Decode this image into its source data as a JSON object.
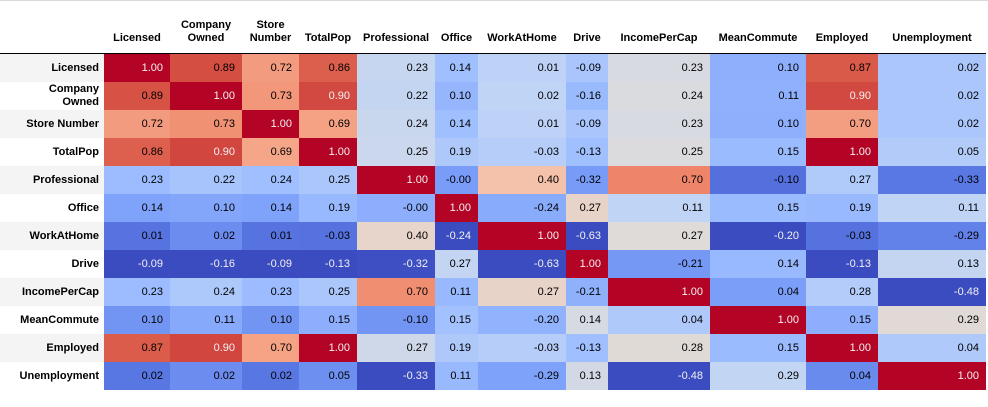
{
  "chart_data": {
    "type": "heatmap",
    "title": "",
    "columns": [
      "Licensed",
      "Company Owned",
      "Store Number",
      "TotalPop",
      "Professional",
      "Office",
      "WorkAtHome",
      "Drive",
      "IncomePerCap",
      "MeanCommute",
      "Employed",
      "Unemployment"
    ],
    "rows": [
      "Licensed",
      "Company Owned",
      "Store Number",
      "TotalPop",
      "Professional",
      "Office",
      "WorkAtHome",
      "Drive",
      "IncomePerCap",
      "MeanCommute",
      "Employed",
      "Unemployment"
    ],
    "values": [
      [
        "1.00",
        "0.89",
        "0.72",
        "0.86",
        "0.23",
        "0.14",
        "0.01",
        "-0.09",
        "0.23",
        "0.10",
        "0.87",
        "0.02"
      ],
      [
        "0.89",
        "1.00",
        "0.73",
        "0.90",
        "0.22",
        "0.10",
        "0.02",
        "-0.16",
        "0.24",
        "0.11",
        "0.90",
        "0.02"
      ],
      [
        "0.72",
        "0.73",
        "1.00",
        "0.69",
        "0.24",
        "0.14",
        "0.01",
        "-0.09",
        "0.23",
        "0.10",
        "0.70",
        "0.02"
      ],
      [
        "0.86",
        "0.90",
        "0.69",
        "1.00",
        "0.25",
        "0.19",
        "-0.03",
        "-0.13",
        "0.25",
        "0.15",
        "1.00",
        "0.05"
      ],
      [
        "0.23",
        "0.22",
        "0.24",
        "0.25",
        "1.00",
        "-0.00",
        "0.40",
        "-0.32",
        "0.70",
        "-0.10",
        "0.27",
        "-0.33"
      ],
      [
        "0.14",
        "0.10",
        "0.14",
        "0.19",
        "-0.00",
        "1.00",
        "-0.24",
        "0.27",
        "0.11",
        "0.15",
        "0.19",
        "0.11"
      ],
      [
        "0.01",
        "0.02",
        "0.01",
        "-0.03",
        "0.40",
        "-0.24",
        "1.00",
        "-0.63",
        "0.27",
        "-0.20",
        "-0.03",
        "-0.29"
      ],
      [
        "-0.09",
        "-0.16",
        "-0.09",
        "-0.13",
        "-0.32",
        "0.27",
        "-0.63",
        "1.00",
        "-0.21",
        "0.14",
        "-0.13",
        "0.13"
      ],
      [
        "0.23",
        "0.24",
        "0.23",
        "0.25",
        "0.70",
        "0.11",
        "0.27",
        "-0.21",
        "1.00",
        "0.04",
        "0.28",
        "-0.48"
      ],
      [
        "0.10",
        "0.11",
        "0.10",
        "0.15",
        "-0.10",
        "0.15",
        "-0.20",
        "0.14",
        "0.04",
        "1.00",
        "0.15",
        "0.29"
      ],
      [
        "0.87",
        "0.90",
        "0.70",
        "1.00",
        "0.27",
        "0.19",
        "-0.03",
        "-0.13",
        "0.28",
        "0.15",
        "1.00",
        "0.04"
      ],
      [
        "0.02",
        "0.02",
        "0.02",
        "0.05",
        "-0.33",
        "0.11",
        "-0.29",
        "0.13",
        "-0.48",
        "0.29",
        "0.04",
        "1.00"
      ]
    ],
    "value_range_hint": [
      -0.63,
      1.0
    ],
    "colormap": "coolwarm",
    "normalization": "per-column min-max",
    "colormap_anchors": [
      "#3b4cc0",
      "#5977e3",
      "#7b9ff9",
      "#9ebeff",
      "#c0d4f5",
      "#dddcdc",
      "#f2cbb7",
      "#f7ac8e",
      "#ee8468",
      "#d65244",
      "#b40426"
    ],
    "colors": {
      "diagonal_cell": "#b40426",
      "min_cell": "#3b4cc0",
      "cell_text_dark": "#000000",
      "cell_text_light": "#f1f1f1",
      "row_label_stripe": "#f4f4f4",
      "header_rule": "#000000",
      "top_rule": "#d9d9d9"
    },
    "legend": "none",
    "grid": "off"
  }
}
